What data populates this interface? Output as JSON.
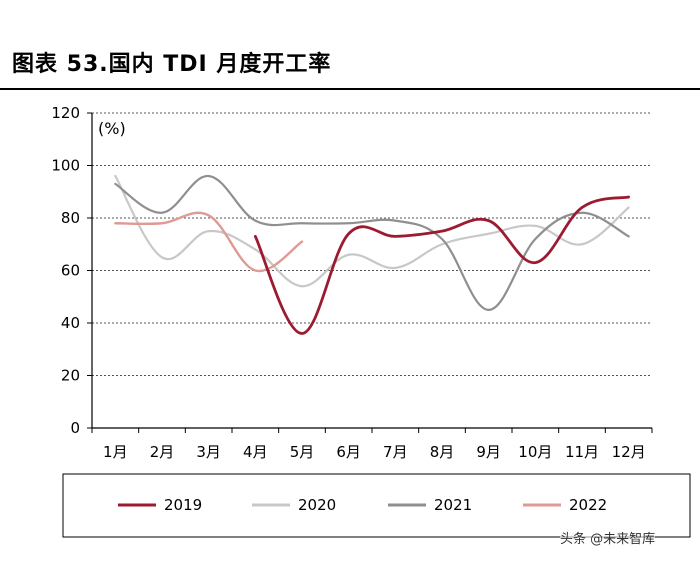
{
  "header": {
    "title": "图表 53.国内 TDI 月度开工率"
  },
  "chart_data": {
    "type": "line",
    "title": "图表 53.国内 TDI 月度开工率",
    "ylabel": "(%)",
    "xlabel": "",
    "ylim": [
      0,
      120
    ],
    "yticks": [
      0,
      20,
      40,
      60,
      80,
      100,
      120
    ],
    "categories": [
      "1月",
      "2月",
      "3月",
      "4月",
      "5月",
      "6月",
      "7月",
      "8月",
      "9月",
      "10月",
      "11月",
      "12月"
    ],
    "grid": "horizontal",
    "legend_position": "bottom",
    "series": [
      {
        "name": "2019",
        "color": "#9b1b30",
        "width": 2.8,
        "values": [
          null,
          null,
          null,
          73,
          36,
          74,
          73,
          75,
          79,
          63,
          84,
          88
        ]
      },
      {
        "name": "2020",
        "color": "#c8c8c8",
        "width": 2.2,
        "values": [
          96,
          65,
          75,
          68,
          54,
          66,
          61,
          70,
          74,
          77,
          70,
          84
        ]
      },
      {
        "name": "2021",
        "color": "#8f8f8f",
        "width": 2.2,
        "values": [
          93,
          82,
          96,
          79,
          78,
          78,
          79,
          72,
          45,
          72,
          82,
          73
        ]
      },
      {
        "name": "2022",
        "color": "#e09a94",
        "width": 2.4,
        "values": [
          78,
          78,
          81,
          60,
          71,
          null,
          null,
          null,
          null,
          null,
          null,
          null
        ]
      }
    ]
  },
  "watermark": {
    "text": "头条 @未来智库"
  }
}
